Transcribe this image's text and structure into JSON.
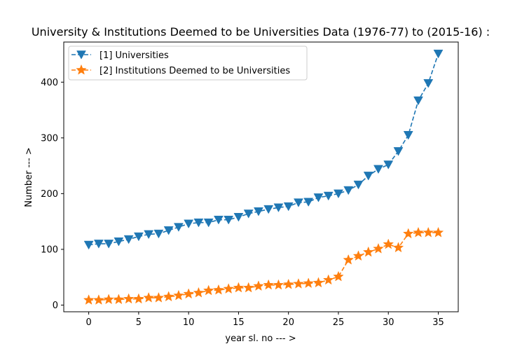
{
  "chart_data": {
    "type": "line",
    "title": "University & Institutions Deemed to be Universities Data (1976-77) to (2015-16) :",
    "xlabel": "year sl. no --- >",
    "ylabel": "Number --- >",
    "xlim": [
      -2.5,
      37
    ],
    "ylim": [
      -12,
      472
    ],
    "xticks": [
      0,
      5,
      10,
      15,
      20,
      25,
      30,
      35
    ],
    "yticks": [
      0,
      100,
      200,
      300,
      400
    ],
    "grid": false,
    "legend_position": "upper-left",
    "x": [
      0,
      1,
      2,
      3,
      4,
      5,
      6,
      7,
      8,
      9,
      10,
      11,
      12,
      13,
      14,
      15,
      16,
      17,
      18,
      19,
      20,
      21,
      22,
      23,
      24,
      25,
      26,
      27,
      28,
      29,
      30,
      31,
      32,
      33,
      34,
      35
    ],
    "series": [
      {
        "name": "[1] Universities",
        "color": "#1f77b4",
        "marker": "triangle-down",
        "linestyle": "dashed",
        "values": [
          108,
          110,
          110,
          114,
          118,
          123,
          127,
          128,
          134,
          140,
          146,
          148,
          148,
          153,
          153,
          158,
          164,
          168,
          172,
          175,
          177,
          184,
          185,
          193,
          196,
          200,
          206,
          216,
          232,
          244,
          252,
          276,
          305,
          367,
          398,
          451
        ]
      },
      {
        "name": "[2] Institutions Deemed to be Universities",
        "color": "#ff7f0e",
        "marker": "star",
        "linestyle": "dashed",
        "values": [
          9,
          9,
          10,
          10,
          11,
          11,
          13,
          13,
          15,
          17,
          20,
          22,
          26,
          27,
          29,
          31,
          31,
          34,
          36,
          36,
          37,
          38,
          39,
          40,
          45,
          51,
          81,
          88,
          95,
          101,
          109,
          103,
          128,
          130,
          130,
          130
        ]
      }
    ]
  }
}
